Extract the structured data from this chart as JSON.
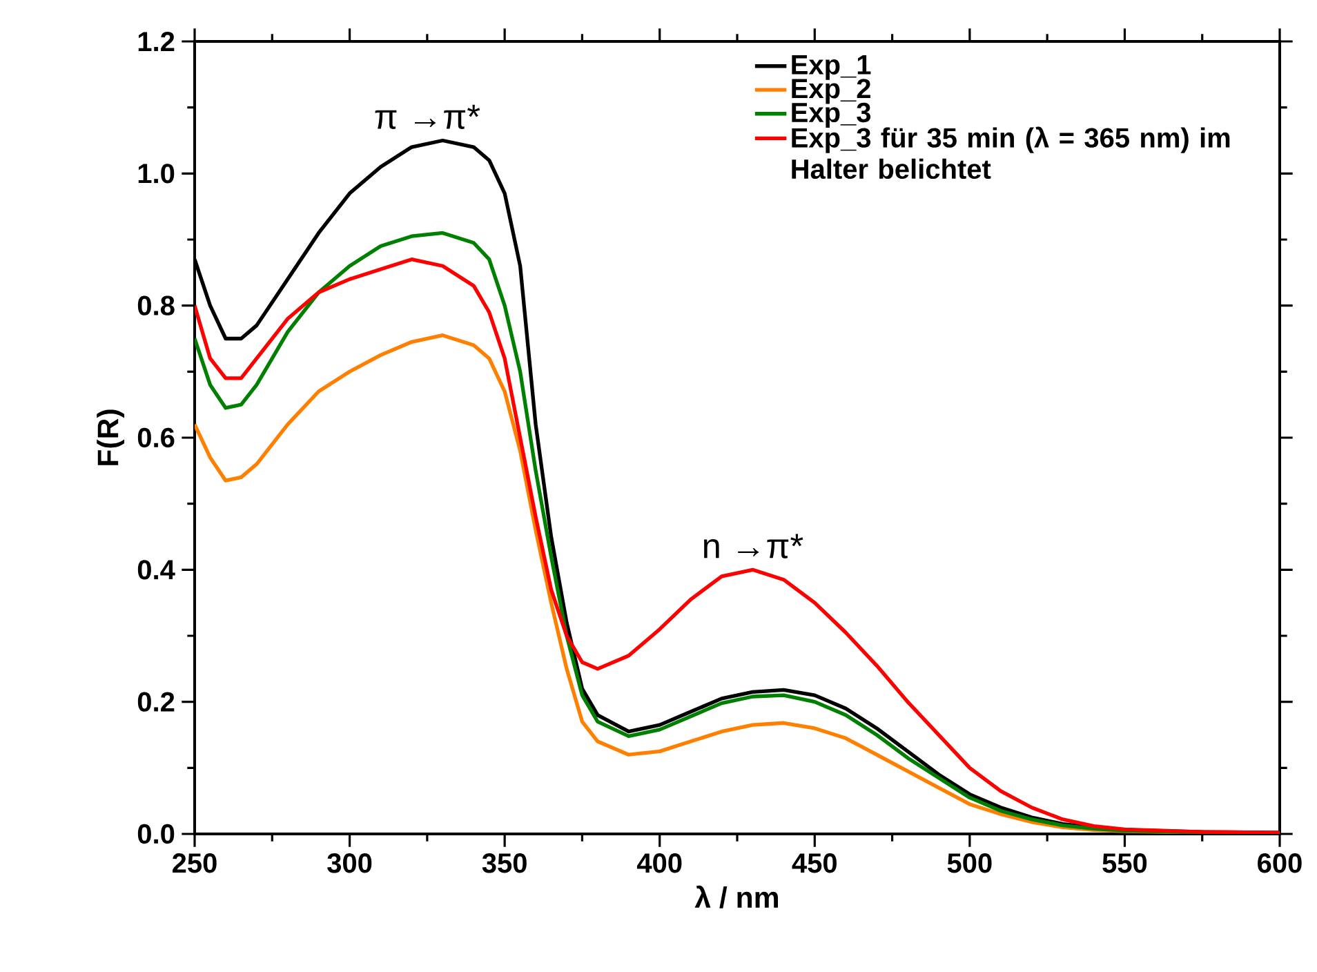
{
  "chart_data": {
    "type": "line",
    "xlabel": "λ / nm",
    "ylabel": "F(R)",
    "xlim": [
      250,
      600
    ],
    "ylim": [
      0,
      1.2
    ],
    "xticks": [
      250,
      300,
      350,
      400,
      450,
      500,
      550,
      600
    ],
    "yticks": [
      {
        "value": 0,
        "label": "0.0"
      },
      {
        "value": 0.2,
        "label": "0.2"
      },
      {
        "value": 0.4,
        "label": "0.4"
      },
      {
        "value": 0.6,
        "label": "0.6"
      },
      {
        "value": 0.8,
        "label": "0.8"
      },
      {
        "value": 1.0,
        "label": "1.0"
      },
      {
        "value": 1.2,
        "label": "1.2"
      }
    ],
    "legend": "top right",
    "x": [
      250,
      255,
      260,
      265,
      270,
      280,
      290,
      300,
      310,
      320,
      330,
      340,
      345,
      350,
      355,
      360,
      365,
      370,
      375,
      380,
      390,
      400,
      410,
      420,
      430,
      440,
      450,
      460,
      470,
      480,
      490,
      500,
      510,
      520,
      530,
      540,
      550,
      575,
      600
    ],
    "series": [
      {
        "name": "Exp_1",
        "color": "#000000",
        "values": [
          0.87,
          0.8,
          0.75,
          0.75,
          0.77,
          0.84,
          0.91,
          0.97,
          1.01,
          1.04,
          1.05,
          1.04,
          1.02,
          0.97,
          0.86,
          0.62,
          0.45,
          0.32,
          0.22,
          0.18,
          0.155,
          0.165,
          0.185,
          0.205,
          0.215,
          0.218,
          0.21,
          0.19,
          0.16,
          0.125,
          0.09,
          0.06,
          0.04,
          0.025,
          0.015,
          0.01,
          0.006,
          0.003,
          0.002
        ]
      },
      {
        "name": "Exp_2",
        "color": "#ff8000",
        "values": [
          0.62,
          0.57,
          0.535,
          0.54,
          0.56,
          0.62,
          0.67,
          0.7,
          0.725,
          0.745,
          0.755,
          0.74,
          0.72,
          0.67,
          0.58,
          0.46,
          0.35,
          0.25,
          0.17,
          0.14,
          0.12,
          0.125,
          0.14,
          0.155,
          0.165,
          0.168,
          0.16,
          0.145,
          0.12,
          0.095,
          0.07,
          0.045,
          0.03,
          0.018,
          0.01,
          0.006,
          0.004,
          0.002,
          0.001
        ]
      },
      {
        "name": "Exp_3",
        "color": "#008000",
        "values": [
          0.75,
          0.68,
          0.645,
          0.65,
          0.68,
          0.76,
          0.82,
          0.86,
          0.89,
          0.905,
          0.91,
          0.895,
          0.87,
          0.8,
          0.7,
          0.55,
          0.42,
          0.3,
          0.21,
          0.17,
          0.148,
          0.158,
          0.178,
          0.198,
          0.208,
          0.21,
          0.2,
          0.18,
          0.15,
          0.115,
          0.085,
          0.055,
          0.035,
          0.022,
          0.013,
          0.008,
          0.005,
          0.002,
          0.001
        ]
      },
      {
        "name": "Exp_3 für 35 min (λ = 365 nm) im Halter belichtet",
        "color": "#ff0000",
        "values": [
          0.8,
          0.72,
          0.69,
          0.69,
          0.72,
          0.78,
          0.82,
          0.84,
          0.855,
          0.87,
          0.86,
          0.83,
          0.79,
          0.72,
          0.6,
          0.48,
          0.37,
          0.3,
          0.26,
          0.25,
          0.27,
          0.31,
          0.355,
          0.39,
          0.4,
          0.385,
          0.35,
          0.305,
          0.255,
          0.2,
          0.15,
          0.1,
          0.065,
          0.04,
          0.022,
          0.012,
          0.007,
          0.003,
          0.002
        ]
      }
    ],
    "annotations": [
      {
        "text": "π →π*",
        "x": 325,
        "y": 1.05
      },
      {
        "text": "n →π*",
        "x": 430,
        "y": 0.4
      }
    ]
  }
}
